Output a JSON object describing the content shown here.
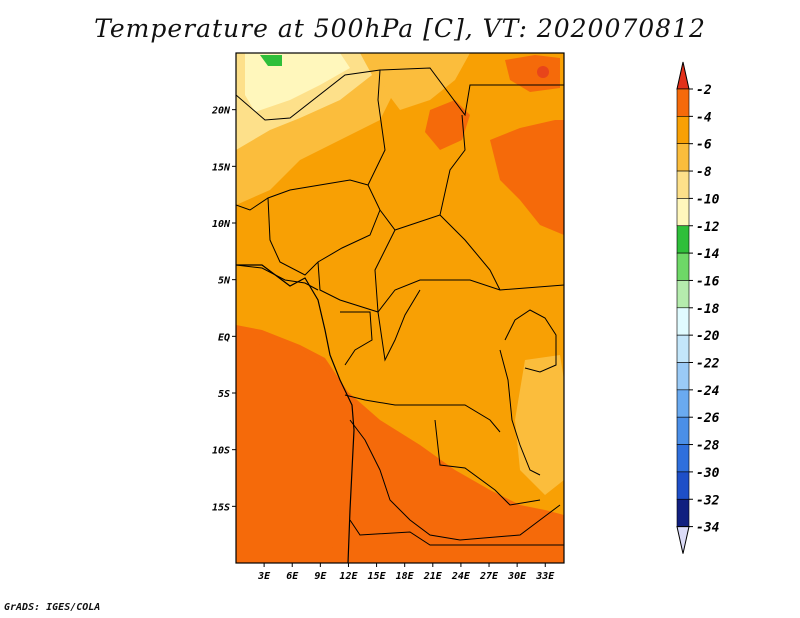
{
  "title": "Temperature at 500hPa [C], VT: 2020070812",
  "footer": "GrADS: IGES/COLA",
  "map": {
    "lon_range": [
      0,
      35
    ],
    "lat_range": [
      -20,
      25
    ],
    "lat_ticks": [
      {
        "value": 20,
        "label": "20N"
      },
      {
        "value": 15,
        "label": "15N"
      },
      {
        "value": 10,
        "label": "10N"
      },
      {
        "value": 5,
        "label": "5N"
      },
      {
        "value": 0,
        "label": "EQ"
      },
      {
        "value": -5,
        "label": "5S"
      },
      {
        "value": -10,
        "label": "10S"
      },
      {
        "value": -15,
        "label": "15S"
      }
    ],
    "lon_ticks": [
      {
        "value": 3,
        "label": "3E"
      },
      {
        "value": 6,
        "label": "6E"
      },
      {
        "value": 9,
        "label": "9E"
      },
      {
        "value": 12,
        "label": "12E"
      },
      {
        "value": 15,
        "label": "15E"
      },
      {
        "value": 18,
        "label": "18E"
      },
      {
        "value": 21,
        "label": "21E"
      },
      {
        "value": 24,
        "label": "24E"
      },
      {
        "value": 27,
        "label": "27E"
      },
      {
        "value": 30,
        "label": "30E"
      },
      {
        "value": 33,
        "label": "33E"
      }
    ]
  },
  "colorbar": {
    "levels": [
      {
        "label": "-2",
        "color": "#e8451a"
      },
      {
        "label": "-4",
        "color": "#f56a0a"
      },
      {
        "label": "-6",
        "color": "#f8a004"
      },
      {
        "label": "-8",
        "color": "#fbbd3c"
      },
      {
        "label": "-10",
        "color": "#fde08a"
      },
      {
        "label": "-12",
        "color": "#fff7bc"
      },
      {
        "label": "-14",
        "color": "#2fbf3a"
      },
      {
        "label": "-16",
        "color": "#6ed867"
      },
      {
        "label": "-18",
        "color": "#b5ecad"
      },
      {
        "label": "-20",
        "color": "#e0fbff"
      },
      {
        "label": "-22",
        "color": "#c3e6fa"
      },
      {
        "label": "-24",
        "color": "#9acaf6"
      },
      {
        "label": "-26",
        "color": "#6aaaf0"
      },
      {
        "label": "-28",
        "color": "#4b8fe8"
      },
      {
        "label": "-30",
        "color": "#2f6fdc"
      },
      {
        "label": "-32",
        "color": "#1e4fc8"
      },
      {
        "label": "-34",
        "color": "#101f80"
      }
    ],
    "top_arrow_color": "#e3301a",
    "bottom_arrow_color": "#dcdcf8"
  }
}
